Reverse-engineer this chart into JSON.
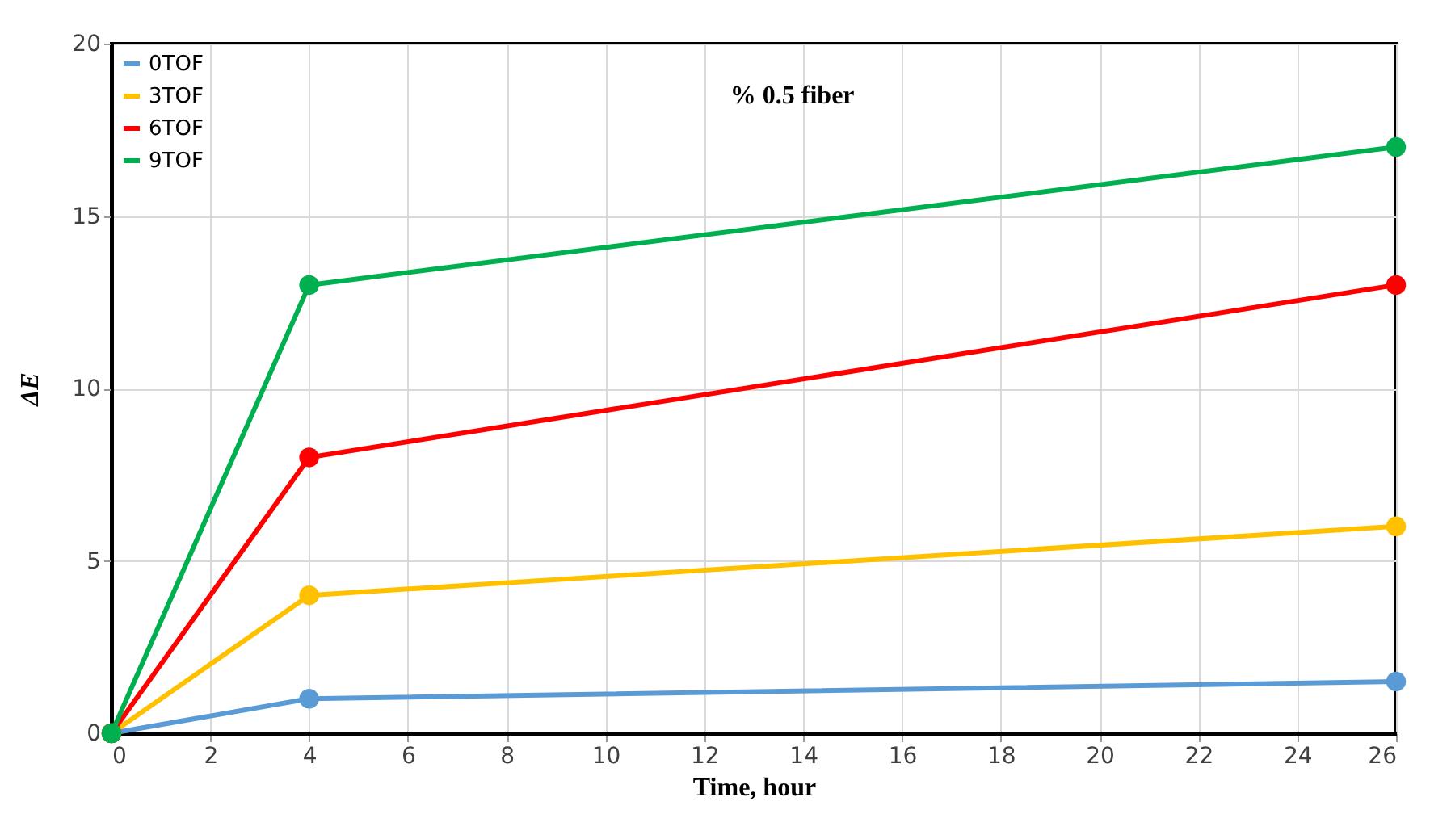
{
  "chart_data": {
    "type": "line",
    "xlabel": "Time, hour",
    "ylabel": "ΔE",
    "annotations": [
      "% 0.5 fiber"
    ],
    "x": [
      0,
      4,
      26
    ],
    "series": [
      {
        "name": "0TOF",
        "color": "#5b9bd5",
        "values": [
          0,
          1,
          1.5
        ]
      },
      {
        "name": "3TOF",
        "color": "#ffc000",
        "values": [
          0,
          4,
          6
        ]
      },
      {
        "name": "6TOF",
        "color": "#ff0000",
        "values": [
          0,
          8,
          13
        ]
      },
      {
        "name": "9TOF",
        "color": "#00b050",
        "values": [
          0,
          13,
          17
        ]
      }
    ],
    "xlim": [
      0,
      26
    ],
    "xticks": [
      0,
      2,
      4,
      6,
      8,
      10,
      12,
      14,
      16,
      18,
      20,
      22,
      24,
      26
    ],
    "ylim": [
      0,
      20
    ],
    "yticks": [
      0,
      5,
      10,
      15,
      20
    ],
    "grid": true,
    "legend": "top left",
    "marker": "circle",
    "line_style": "solid"
  }
}
